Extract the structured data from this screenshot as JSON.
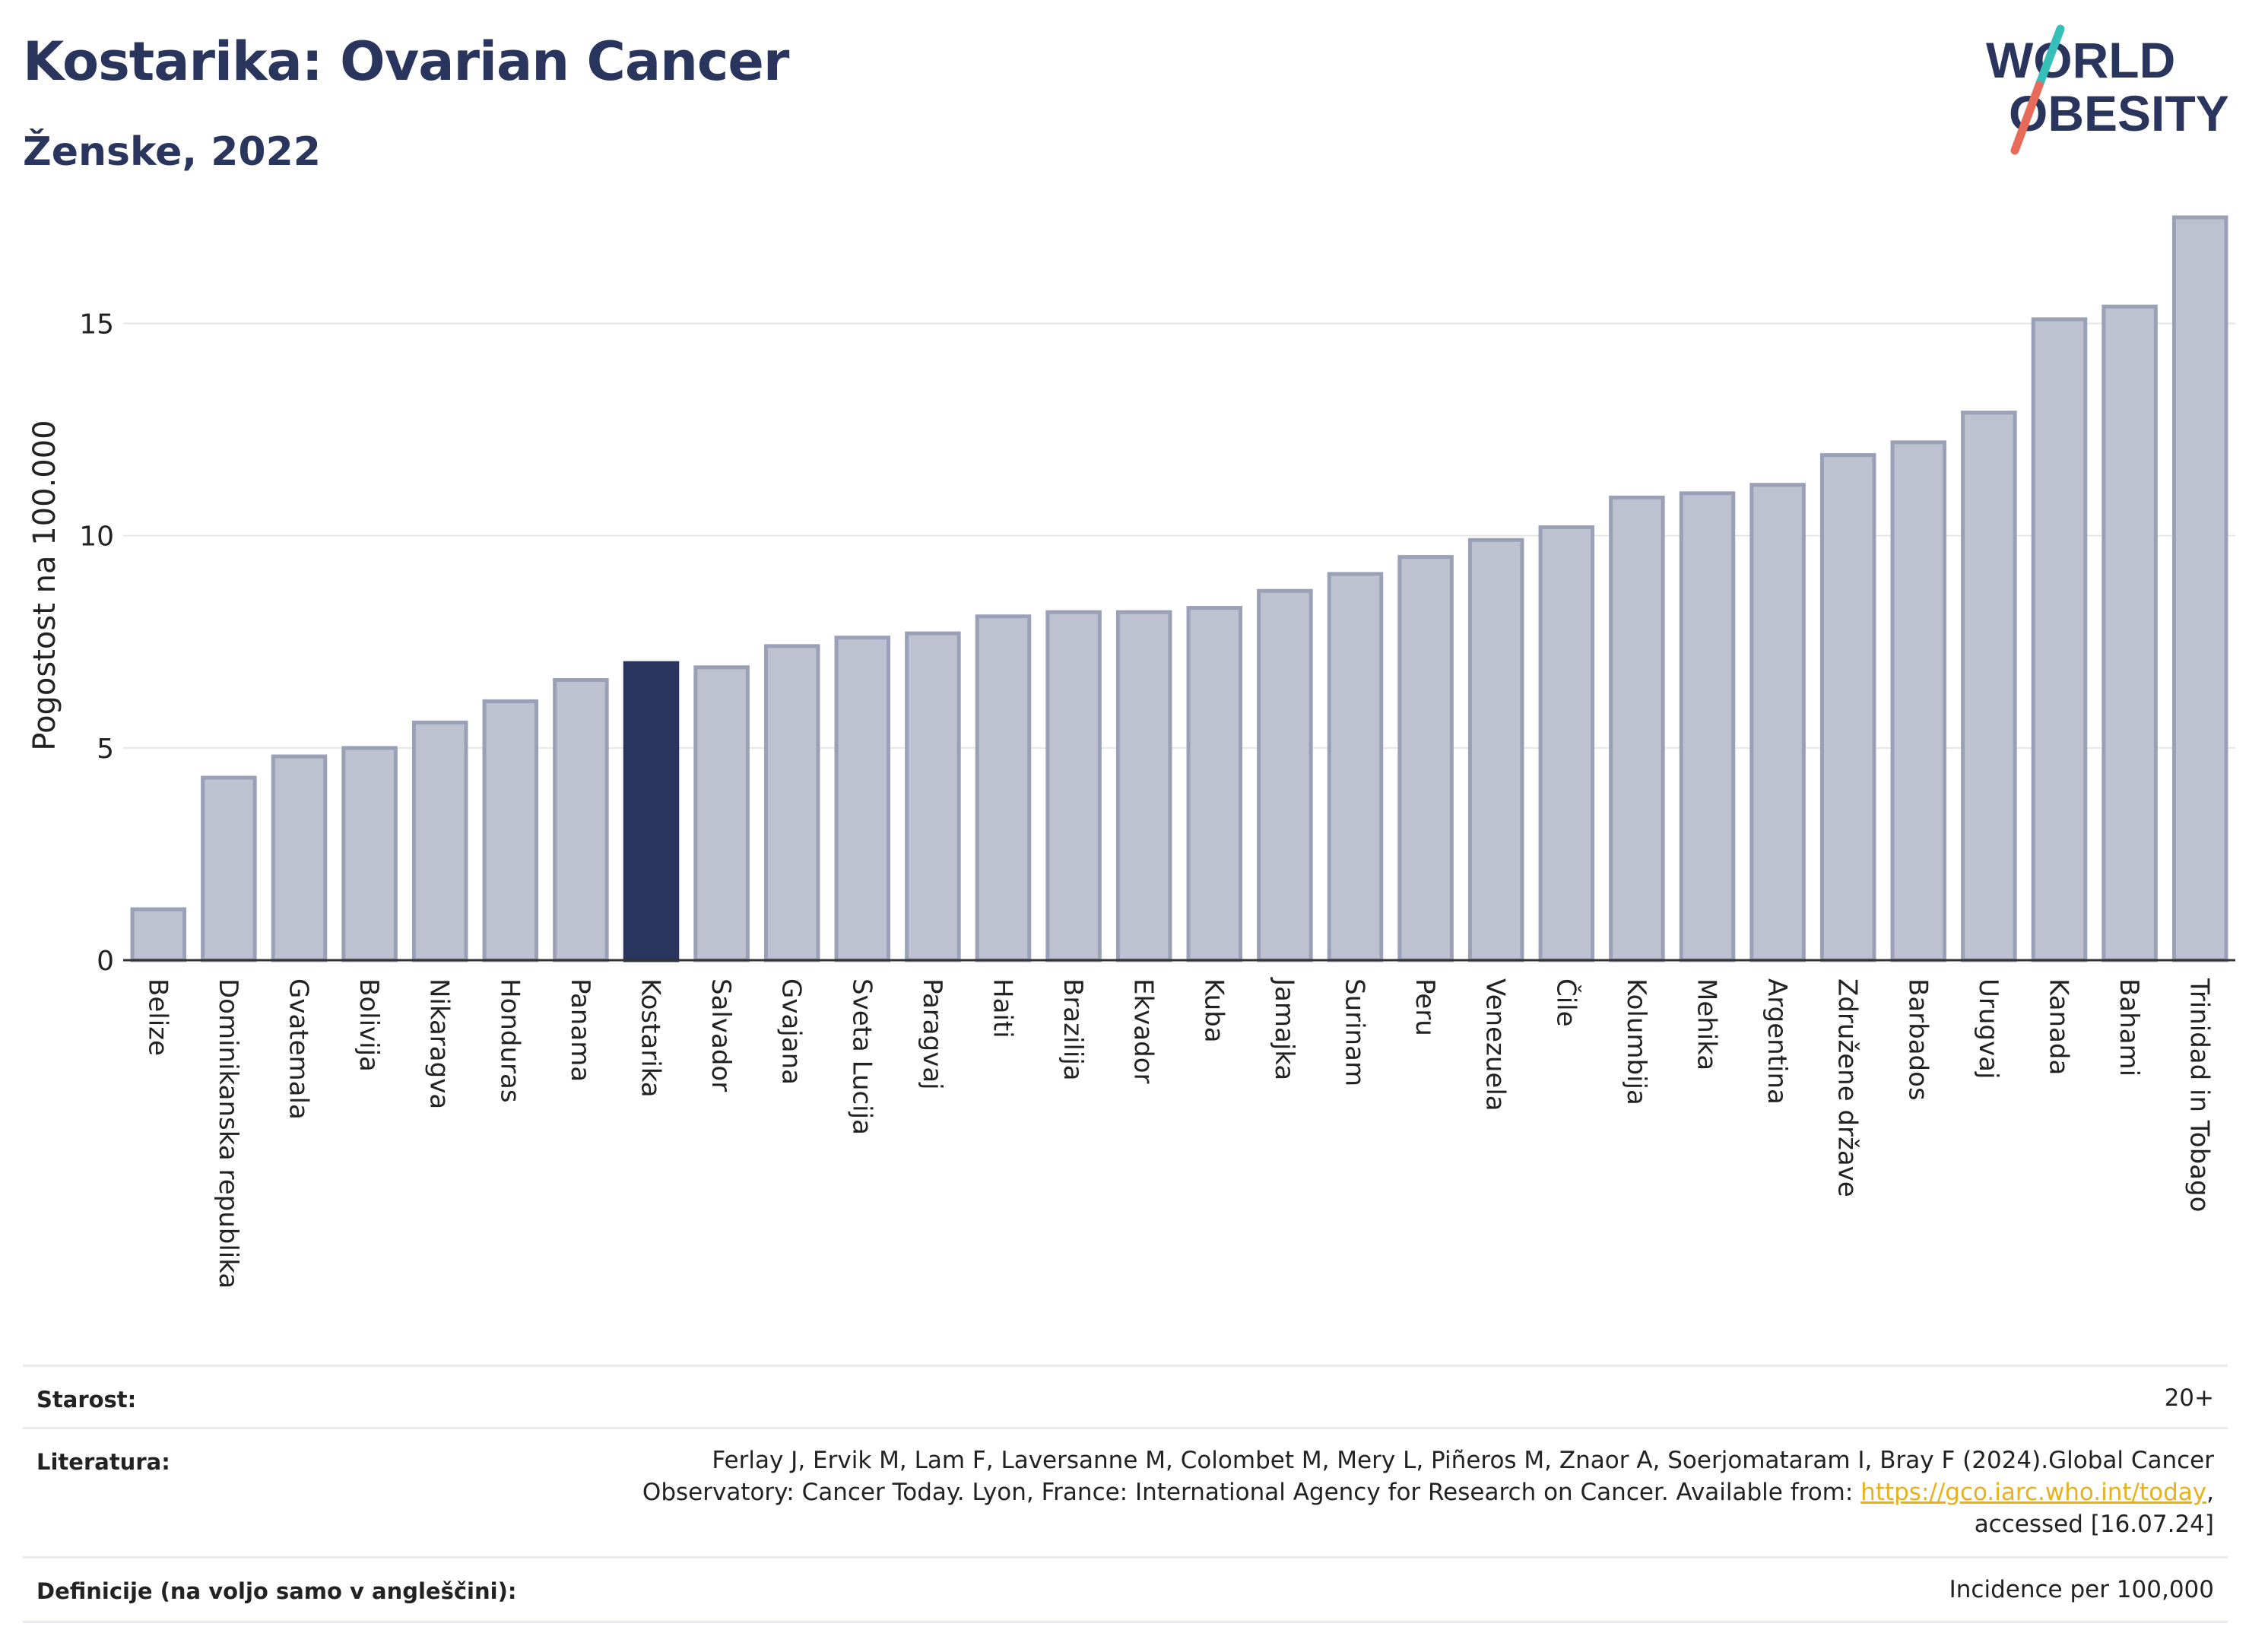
{
  "header": {
    "title": "Kostarika: Ovarian Cancer",
    "subtitle": "Ženske, 2022"
  },
  "logo": {
    "line1": "WORLD",
    "line2": "OBESITY"
  },
  "colors": {
    "title": "#2a355e",
    "bar": "#bec1cf",
    "bar_stroke": "#9aa0b6",
    "highlight": "#2a355e"
  },
  "chart_data": {
    "type": "bar",
    "title": "Kostarika: Ovarian Cancer",
    "ylabel": "Pogostost na 100.000",
    "xlabel": "",
    "ylim": [
      0,
      18
    ],
    "yticks": [
      0,
      5,
      10,
      15
    ],
    "grid": true,
    "highlight": "Kostarika",
    "categories": [
      "Belize",
      "Dominikanska republika",
      "Gvatemala",
      "Bolivija",
      "Nikaragva",
      "Honduras",
      "Panama",
      "Kostarika",
      "Salvador",
      "Gvajana",
      "Sveta Lucija",
      "Paragvaj",
      "Haiti",
      "Brazilija",
      "Ekvador",
      "Kuba",
      "Jamajka",
      "Surinam",
      "Peru",
      "Venezuela",
      "Čile",
      "Kolumbija",
      "Mehika",
      "Argentina",
      "Združene države",
      "Barbados",
      "Urugvaj",
      "Kanada",
      "Bahami",
      "Trinidad in Tobago"
    ],
    "values": [
      1.2,
      4.3,
      4.8,
      5.0,
      5.6,
      6.1,
      6.6,
      7.0,
      6.9,
      7.4,
      7.6,
      7.7,
      8.1,
      8.2,
      8.2,
      8.3,
      8.7,
      9.1,
      9.5,
      9.9,
      10.2,
      10.9,
      11.0,
      11.2,
      11.9,
      12.2,
      12.9,
      15.1,
      15.4,
      17.5
    ]
  },
  "info": {
    "age_label": "Starost:",
    "age_value": "20+",
    "lit_label": "Literatura:",
    "lit_line1": "Ferlay J, Ervik M, Lam F, Laversanne M, Colombet M, Mery L, Piñeros M, Znaor A, Soerjomataram I, Bray F (2024).Global Cancer",
    "lit_line2_pre": "Observatory: Cancer Today. Lyon, France: International Agency for Research on Cancer. Available from: ",
    "lit_link": "https://gco.iarc.who.int/today",
    "lit_line2_post": ",",
    "lit_line3": "accessed [16.07.24]",
    "def_label": "Definicije (na voljo samo v angleščini):",
    "def_value": "Incidence per 100,000"
  }
}
